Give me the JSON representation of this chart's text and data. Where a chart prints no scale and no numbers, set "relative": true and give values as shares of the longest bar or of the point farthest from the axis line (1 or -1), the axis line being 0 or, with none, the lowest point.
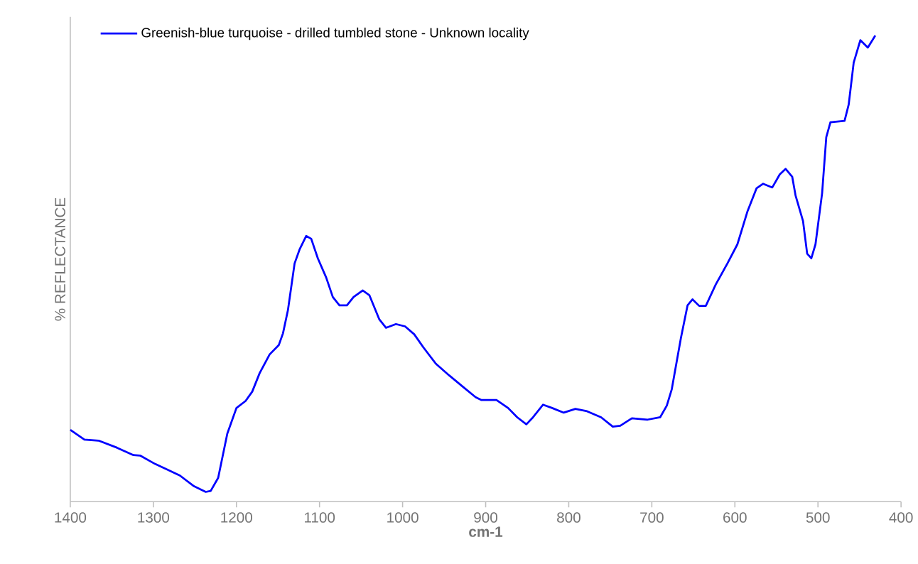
{
  "chart_data": {
    "type": "line",
    "relative": true,
    "xlabel": "cm-1",
    "ylabel": "% REFLECTANCE",
    "xlim": [
      1400,
      400
    ],
    "xticks": [
      1400,
      1300,
      1200,
      1100,
      1000,
      900,
      800,
      700,
      600,
      500,
      400
    ],
    "legend": "top left",
    "grid": false,
    "marker": "none",
    "line_style": "solid",
    "series": [
      {
        "name": "Greenish-blue turquoise - drilled tumbled stone - Unknown locality",
        "color": "#0000ff",
        "x": [
          1400,
          1383,
          1366,
          1344,
          1324,
          1316,
          1298,
          1282,
          1268,
          1251,
          1237,
          1231,
          1222,
          1211,
          1200,
          1189,
          1181,
          1172,
          1160,
          1149,
          1144,
          1138,
          1130,
          1124,
          1116,
          1110,
          1102,
          1092,
          1084,
          1076,
          1067,
          1059,
          1048,
          1040,
          1028,
          1020,
          1008,
          997,
          986,
          975,
          960,
          944,
          927,
          912,
          905,
          887,
          873,
          862,
          851,
          843,
          831,
          820,
          806,
          792,
          778,
          761,
          747,
          738,
          724,
          705,
          690,
          682,
          676,
          671,
          665,
          657,
          651,
          643,
          635,
          623,
          609,
          597,
          585,
          574,
          566,
          555,
          546,
          539,
          531,
          527,
          518,
          513,
          508,
          503,
          495,
          490,
          485,
          468,
          463,
          457,
          449,
          440,
          431
        ],
        "values": [
          0.154,
          0.133,
          0.131,
          0.116,
          0.1,
          0.099,
          0.081,
          0.068,
          0.056,
          0.033,
          0.021,
          0.023,
          0.051,
          0.146,
          0.201,
          0.216,
          0.236,
          0.276,
          0.316,
          0.336,
          0.361,
          0.411,
          0.511,
          0.541,
          0.57,
          0.564,
          0.522,
          0.481,
          0.439,
          0.421,
          0.421,
          0.439,
          0.453,
          0.443,
          0.391,
          0.373,
          0.381,
          0.376,
          0.359,
          0.331,
          0.296,
          0.271,
          0.246,
          0.224,
          0.218,
          0.218,
          0.201,
          0.181,
          0.166,
          0.181,
          0.208,
          0.201,
          0.191,
          0.199,
          0.194,
          0.181,
          0.161,
          0.163,
          0.179,
          0.176,
          0.181,
          0.206,
          0.241,
          0.291,
          0.351,
          0.421,
          0.434,
          0.42,
          0.42,
          0.466,
          0.511,
          0.552,
          0.622,
          0.672,
          0.682,
          0.674,
          0.702,
          0.714,
          0.697,
          0.657,
          0.602,
          0.532,
          0.522,
          0.552,
          0.662,
          0.782,
          0.814,
          0.817,
          0.852,
          0.942,
          0.99,
          0.974,
          1.0
        ]
      }
    ]
  }
}
